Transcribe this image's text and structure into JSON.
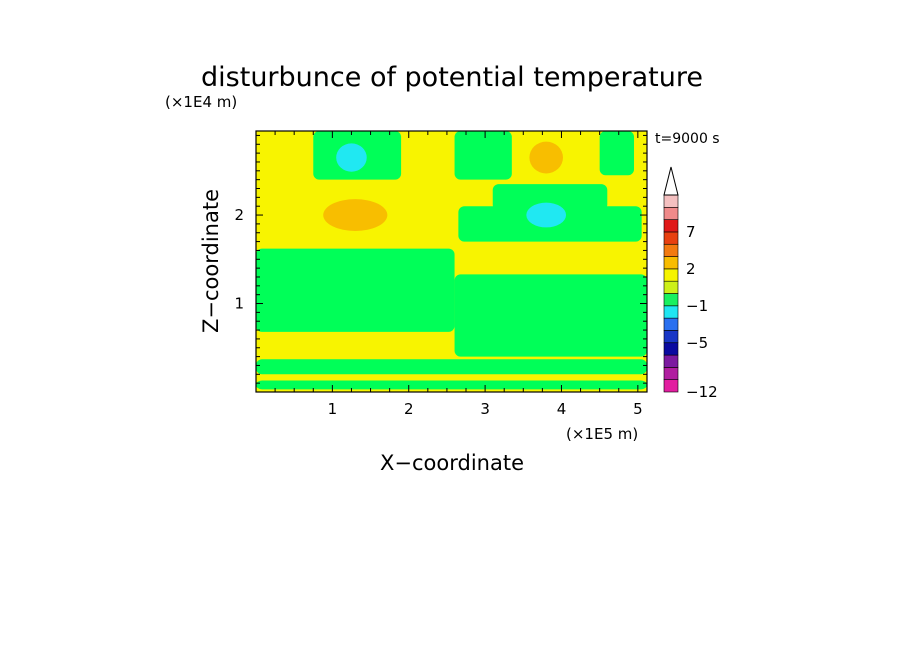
{
  "chart_data": {
    "type": "heatmap",
    "title": "disturbunce of potential temperature",
    "xlabel": "X−coordinate",
    "ylabel": "Z−coordinate",
    "x_unit": "(×1E5 m)",
    "y_unit": "(×1E4 m)",
    "time_label": "t=9000 s",
    "xlim": [
      0,
      5.12
    ],
    "ylim": [
      0,
      2.95
    ],
    "x_ticks": [
      1,
      2,
      3,
      4,
      5
    ],
    "y_ticks": [
      1,
      2
    ],
    "x_tick_labels": [
      "1",
      "2",
      "3",
      "4",
      "5"
    ],
    "y_tick_labels": [
      "1",
      "2"
    ],
    "colorbar": {
      "levels": [
        -12,
        -11,
        -9,
        -7,
        -5,
        -3,
        -2,
        -1,
        0,
        1,
        2,
        3,
        5,
        7,
        9,
        11
      ],
      "colors": [
        "#e21ea0",
        "#b01ea0",
        "#7c1aa0",
        "#0a0aa0",
        "#1836c6",
        "#2a70f0",
        "#20e6f2",
        "#18f060",
        "#cdf018",
        "#f6f400",
        "#f8bc00",
        "#f37a10",
        "#e84010",
        "#e01818",
        "#f08a8a",
        "#f4c0c0"
      ],
      "tick_labels": [
        "−12",
        "−5",
        "−1",
        "2",
        "7"
      ],
      "tick_values": [
        -12,
        -5,
        -1,
        2,
        7
      ],
      "extend": "max"
    },
    "fills": {
      "green": "#00ff58",
      "yellow": "#f8f400",
      "orange": "#f8be00",
      "cyan": "#20e8f2"
    },
    "regions": {
      "background": {
        "x": [
          0,
          5.12
        ],
        "y": [
          0,
          2.95
        ],
        "color": "yellow"
      },
      "green_bands": [
        {
          "x": [
            0,
            5.12
          ],
          "y": [
            0.03,
            0.13
          ]
        },
        {
          "x": [
            0,
            5.12
          ],
          "y": [
            0.2,
            0.37
          ]
        },
        {
          "x": [
            0,
            2.6
          ],
          "y": [
            0.68,
            1.62
          ]
        },
        {
          "x": [
            2.6,
            5.12
          ],
          "y": [
            0.4,
            1.33
          ]
        },
        {
          "x": [
            0.75,
            1.9
          ],
          "y": [
            2.4,
            2.95
          ]
        },
        {
          "x": [
            2.6,
            3.35
          ],
          "y": [
            2.4,
            2.95
          ]
        },
        {
          "x": [
            4.5,
            4.95
          ],
          "y": [
            2.45,
            2.95
          ]
        },
        {
          "x": [
            2.65,
            5.05
          ],
          "y": [
            1.7,
            2.1
          ]
        },
        {
          "x": [
            3.1,
            4.6
          ],
          "y": [
            2.05,
            2.35
          ]
        }
      ],
      "orange_spots": [
        {
          "cx": 1.3,
          "cy": 2.0,
          "rx": 0.42,
          "ry": 0.18
        },
        {
          "cx": 3.8,
          "cy": 2.65,
          "rx": 0.22,
          "ry": 0.18
        }
      ],
      "cyan_spots": [
        {
          "cx": 1.25,
          "cy": 2.65,
          "rx": 0.2,
          "ry": 0.16
        },
        {
          "cx": 3.8,
          "cy": 2.0,
          "rx": 0.26,
          "ry": 0.14
        }
      ]
    }
  }
}
